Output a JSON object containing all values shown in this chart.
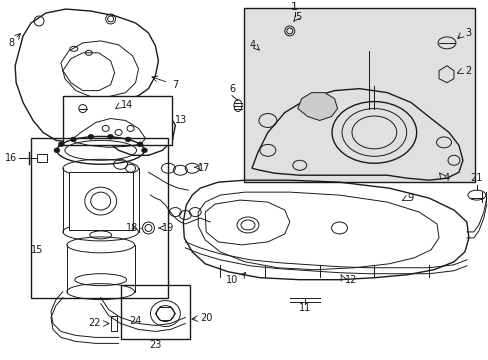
{
  "bg_color": "#ffffff",
  "line_color": "#1a1a1a",
  "shaded_box_color": "#e0e0e0",
  "fig_width": 4.89,
  "fig_height": 3.6,
  "dpi": 100
}
